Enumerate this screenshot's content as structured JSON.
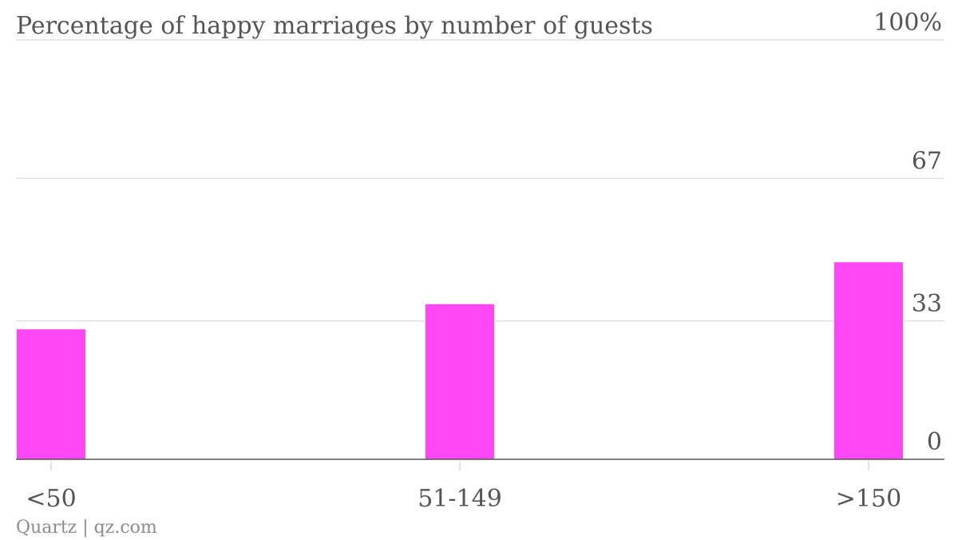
{
  "chart_data": {
    "type": "bar",
    "title": "Percentage of happy marriages by number of guests",
    "categories": [
      "<50",
      "51-149",
      ">150"
    ],
    "values": [
      31,
      37,
      47
    ],
    "ylim": [
      0,
      100
    ],
    "yticks": [
      0,
      33,
      67,
      100
    ],
    "ytick_labels": [
      "0",
      "33",
      "67",
      "100%"
    ],
    "grid": true,
    "bar_color": "#ff47f5",
    "source": "Quartz | qz.com"
  }
}
